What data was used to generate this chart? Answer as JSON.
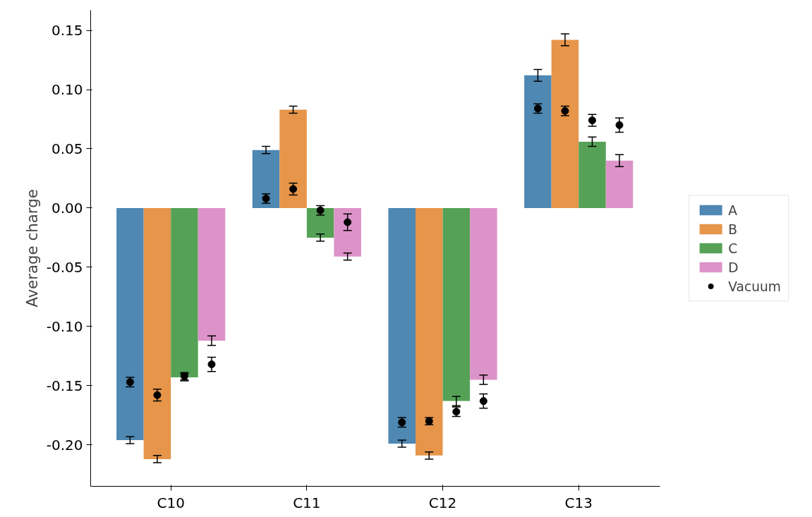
{
  "chart_data": {
    "type": "bar",
    "ylabel": "Average charge",
    "categories": [
      "C10",
      "C11",
      "C12",
      "C13"
    ],
    "series": [
      {
        "name": "A",
        "color": "#4e88b3",
        "values": [
          -0.196,
          0.049,
          -0.199,
          0.112
        ],
        "errors": [
          0.003,
          0.003,
          0.003,
          0.005
        ]
      },
      {
        "name": "B",
        "color": "#e6954a",
        "values": [
          -0.212,
          0.083,
          -0.209,
          0.142
        ],
        "errors": [
          0.003,
          0.003,
          0.003,
          0.005
        ]
      },
      {
        "name": "C",
        "color": "#55a257",
        "values": [
          -0.143,
          -0.025,
          -0.163,
          0.056
        ],
        "errors": [
          0.003,
          0.003,
          0.004,
          0.004
        ]
      },
      {
        "name": "D",
        "color": "#dc93c8",
        "values": [
          -0.112,
          -0.041,
          -0.145,
          0.04
        ],
        "errors": [
          0.004,
          0.003,
          0.004,
          0.005
        ]
      },
      {
        "name": "Vacuum",
        "type": "scatter",
        "color": "#000000",
        "x": [
          "C10",
          "C11",
          "C12",
          "C13"
        ],
        "values": [
          -0.147,
          0.008,
          -0.181,
          0.084
        ],
        "errors": [
          0.004,
          0.004,
          0.004,
          0.004
        ]
      },
      {
        "type": "scatter",
        "color": "#000000",
        "x": [
          "C10",
          "C11",
          "C12",
          "C13"
        ],
        "values": [
          -0.158,
          0.016,
          -0.18,
          0.082
        ],
        "errors": [
          0.005,
          0.005,
          0.003,
          0.004
        ]
      },
      {
        "type": "scatter",
        "color": "#000000",
        "x": [
          "C10",
          "C11",
          "C12",
          "C13"
        ],
        "values": [
          -0.142,
          -0.002,
          -0.172,
          0.074
        ],
        "errors": [
          0.003,
          0.004,
          0.004,
          0.005
        ]
      },
      {
        "type": "scatter",
        "color": "#000000",
        "x": [
          "C10",
          "C11",
          "C12",
          "C13"
        ],
        "values": [
          -0.132,
          -0.012,
          -0.163,
          0.07
        ],
        "errors": [
          0.006,
          0.007,
          0.006,
          0.006
        ]
      }
    ],
    "ylim": [
      -0.235,
      0.167
    ],
    "yticks": [
      {
        "value": -0.2,
        "label": "-0.20"
      },
      {
        "value": -0.15,
        "label": "-0.15"
      },
      {
        "value": -0.1,
        "label": "-0.10"
      },
      {
        "value": -0.05,
        "label": "-0.05"
      },
      {
        "value": 0,
        "label": "0.00"
      },
      {
        "value": 0.05,
        "label": "0.05"
      },
      {
        "value": 0.1,
        "label": "0.10"
      },
      {
        "value": 0.15,
        "label": "0.15"
      }
    ],
    "marker": "circle",
    "grid": false,
    "legend": "right"
  }
}
